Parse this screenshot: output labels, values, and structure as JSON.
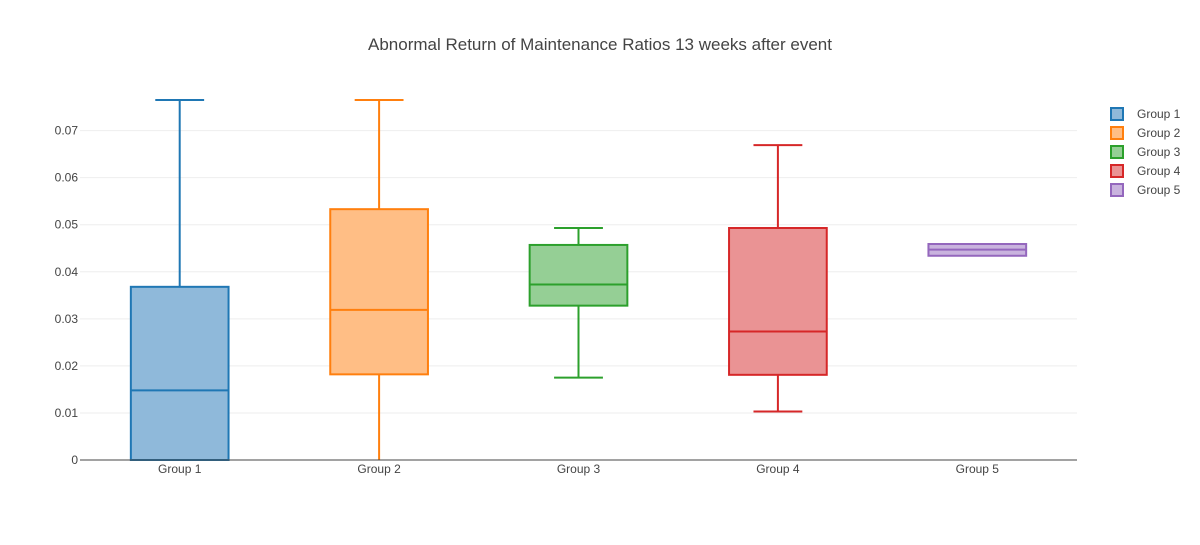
{
  "chart_data": {
    "type": "box",
    "title": "Abnormal Return of Maintenance Ratios 13 weeks after event",
    "xlabel": "",
    "ylabel": "",
    "ylim": [
      0,
      0.0765
    ],
    "yticks": [
      0,
      0.01,
      0.02,
      0.03,
      0.04,
      0.05,
      0.06,
      0.07
    ],
    "ytick_labels": [
      "0",
      "0.01",
      "0.02",
      "0.03",
      "0.04",
      "0.05",
      "0.06",
      "0.07"
    ],
    "grid": true,
    "legend_position": "top-right",
    "categories": [
      "Group 1",
      "Group 2",
      "Group 3",
      "Group 4",
      "Group 5"
    ],
    "series": [
      {
        "name": "Group 1",
        "color": "#1f77b4",
        "fill": "#8fb9da",
        "min": 0,
        "q1": 0,
        "median": 0.0148,
        "q3": 0.0368,
        "max": 0.0765
      },
      {
        "name": "Group 2",
        "color": "#ff7f0e",
        "fill": "#ffbe85",
        "min": 0,
        "q1": 0.0182,
        "median": 0.0319,
        "q3": 0.0533,
        "max": 0.0765
      },
      {
        "name": "Group 3",
        "color": "#2ca02c",
        "fill": "#95cf95",
        "min": 0.0175,
        "q1": 0.0328,
        "median": 0.0373,
        "q3": 0.0457,
        "max": 0.0493
      },
      {
        "name": "Group 4",
        "color": "#d62728",
        "fill": "#ea9394",
        "min": 0.0103,
        "q1": 0.0181,
        "median": 0.0273,
        "q3": 0.0493,
        "max": 0.0669
      },
      {
        "name": "Group 5",
        "color": "#9467bd",
        "fill": "#c9b3de",
        "min": 0.0434,
        "q1": 0.0434,
        "median": 0.0447,
        "q3": 0.0459,
        "max": 0.0459
      }
    ]
  }
}
